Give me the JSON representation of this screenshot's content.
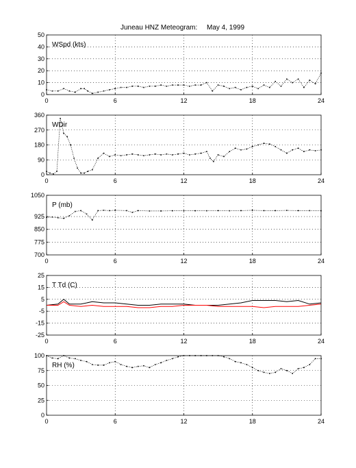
{
  "figure": {
    "title": "Juneau HNZ Meteogram:",
    "date": "May  4, 1999"
  },
  "chart_data": [
    {
      "type": "scatter",
      "label": "WSpd (kts)",
      "xlim": [
        0,
        24
      ],
      "ylim": [
        0,
        50
      ],
      "xticks": [
        "0",
        "6",
        "12",
        "18",
        "24"
      ],
      "yticks": [
        "0",
        "10",
        "20",
        "30",
        "40",
        "50"
      ],
      "grid": true,
      "series": [
        {
          "color": "#000000",
          "x": [
            0,
            0.5,
            1,
            1.5,
            2,
            2.5,
            3,
            3.3,
            3.6,
            4,
            4.5,
            5,
            5.5,
            6,
            6.5,
            7,
            7.5,
            8,
            8.5,
            9,
            9.5,
            10,
            10.5,
            11,
            11.5,
            12,
            12.5,
            13,
            13.5,
            14,
            14.5,
            15,
            15.5,
            16,
            16.5,
            17,
            17.5,
            18,
            18.5,
            19,
            19.5,
            20,
            20.5,
            21,
            21.5,
            22,
            22.5,
            23,
            23.5,
            24
          ],
          "y": [
            4,
            3,
            3,
            5,
            3,
            2,
            5,
            5,
            3,
            1,
            2,
            3,
            4,
            5,
            6,
            6,
            7,
            7,
            6,
            7,
            7,
            8,
            7,
            8,
            8,
            8,
            7,
            8,
            8,
            10,
            3,
            8,
            7,
            5,
            6,
            4,
            6,
            7,
            5,
            8,
            6,
            11,
            7,
            13,
            10,
            13,
            6,
            12,
            9,
            18
          ]
        }
      ]
    },
    {
      "type": "scatter",
      "label": "WDir",
      "xlim": [
        0,
        24
      ],
      "ylim": [
        0,
        360
      ],
      "xticks": [
        "0",
        "6",
        "12",
        "18",
        "24"
      ],
      "yticks": [
        "0",
        "90",
        "180",
        "270",
        "360"
      ],
      "grid": true,
      "series": [
        {
          "color": "#000000",
          "x": [
            0,
            0.3,
            0.6,
            0.9,
            1.2,
            1.5,
            1.8,
            2.1,
            2.4,
            2.7,
            3,
            3.3,
            3.6,
            4,
            4.5,
            5,
            5.5,
            6,
            6.5,
            7,
            7.5,
            8,
            8.5,
            9,
            9.5,
            10,
            10.5,
            11,
            11.5,
            12,
            12.5,
            13,
            13.5,
            14,
            14.3,
            14.6,
            15,
            15.5,
            16,
            16.5,
            17,
            17.5,
            18,
            18.5,
            19,
            19.5,
            20,
            20.5,
            21,
            21.5,
            22,
            22.5,
            23,
            23.5,
            24
          ],
          "y": [
            20,
            10,
            5,
            20,
            340,
            250,
            230,
            180,
            100,
            40,
            10,
            10,
            20,
            30,
            100,
            130,
            110,
            120,
            115,
            120,
            125,
            120,
            115,
            120,
            125,
            120,
            125,
            120,
            125,
            130,
            120,
            125,
            130,
            140,
            100,
            80,
            120,
            110,
            140,
            160,
            150,
            155,
            170,
            180,
            190,
            185,
            170,
            150,
            130,
            150,
            160,
            140,
            150,
            145,
            150
          ]
        }
      ]
    },
    {
      "type": "scatter",
      "label": "P (mb)",
      "xlim": [
        0,
        24
      ],
      "ylim": [
        700,
        1050
      ],
      "xticks": [
        "0",
        "6",
        "12",
        "18",
        "24"
      ],
      "yticks": [
        "700",
        "775",
        "850",
        "925",
        "1050"
      ],
      "grid": true,
      "series": [
        {
          "color": "#000000",
          "x": [
            0,
            0.5,
            1,
            1.5,
            2,
            2.5,
            3,
            3.5,
            4,
            4.5,
            5,
            5.5,
            6,
            7,
            7.5,
            8,
            9,
            10,
            11,
            12,
            13,
            14,
            15,
            16,
            17,
            18,
            19,
            20,
            21,
            22,
            23,
            24
          ],
          "y": [
            920,
            922,
            918,
            915,
            930,
            955,
            960,
            940,
            905,
            960,
            962,
            960,
            962,
            960,
            950,
            960,
            958,
            958,
            959,
            959,
            959,
            959,
            960,
            959,
            960,
            962,
            960,
            960,
            961,
            960,
            960,
            959
          ]
        }
      ]
    },
    {
      "type": "line",
      "label": "T Td (C)",
      "xlim": [
        0,
        24
      ],
      "ylim": [
        -25,
        25
      ],
      "xticks": [
        "0",
        "6",
        "12",
        "18",
        "24"
      ],
      "yticks": [
        "-25",
        "-15",
        "-5",
        "5",
        "15",
        "25"
      ],
      "grid": true,
      "series": [
        {
          "color": "#000000",
          "x": [
            0,
            1,
            1.5,
            2,
            3,
            4,
            5,
            6,
            7,
            8,
            9,
            10,
            11,
            12,
            13,
            14,
            15,
            16,
            17,
            18,
            19,
            20,
            21,
            22,
            23,
            24
          ],
          "y": [
            0,
            1,
            5,
            1,
            1,
            3,
            2,
            2,
            1,
            0,
            0,
            1,
            1,
            1,
            0,
            0,
            0,
            1,
            2,
            4,
            4,
            4,
            3,
            4,
            1,
            2
          ]
        },
        {
          "color": "#ff0000",
          "x": [
            0,
            1,
            1.5,
            2,
            3,
            4,
            5,
            6,
            7,
            8,
            9,
            10,
            11,
            12,
            13,
            14,
            15,
            16,
            17,
            18,
            19,
            20,
            21,
            22,
            23,
            24
          ],
          "y": [
            0,
            0,
            3,
            0,
            -1,
            0,
            -1,
            -1,
            -1,
            -2,
            -2,
            -1,
            -1,
            0,
            0,
            0,
            -1,
            -1,
            -1,
            -1,
            -2,
            -1,
            -1,
            -1,
            0,
            1
          ]
        }
      ]
    },
    {
      "type": "scatter",
      "label": "RH (%)",
      "xlim": [
        0,
        24
      ],
      "ylim": [
        0,
        100
      ],
      "xticks": [
        "0",
        "6",
        "12",
        "18",
        "24"
      ],
      "yticks": [
        "0",
        "25",
        "50",
        "75",
        "100"
      ],
      "grid": true,
      "series": [
        {
          "color": "#000000",
          "x": [
            0,
            0.5,
            1,
            1.5,
            2,
            2.5,
            3,
            3.5,
            4,
            4.5,
            5,
            5.5,
            6,
            6.5,
            7,
            7.5,
            8,
            8.5,
            9,
            9.5,
            10,
            10.5,
            11,
            11.5,
            12,
            12.5,
            13,
            13.5,
            14,
            14.5,
            15,
            15.5,
            16,
            16.5,
            17,
            17.5,
            18,
            18.5,
            19,
            19.5,
            20,
            20.5,
            21,
            21.5,
            22,
            22.5,
            23,
            23.5,
            24
          ],
          "y": [
            100,
            96,
            95,
            100,
            96,
            95,
            92,
            90,
            85,
            84,
            84,
            88,
            90,
            85,
            82,
            80,
            82,
            83,
            80,
            85,
            88,
            92,
            95,
            98,
            100,
            100,
            100,
            100,
            100,
            100,
            100,
            98,
            95,
            90,
            88,
            85,
            80,
            75,
            72,
            70,
            72,
            78,
            75,
            70,
            78,
            80,
            85,
            95,
            95
          ]
        }
      ]
    }
  ]
}
